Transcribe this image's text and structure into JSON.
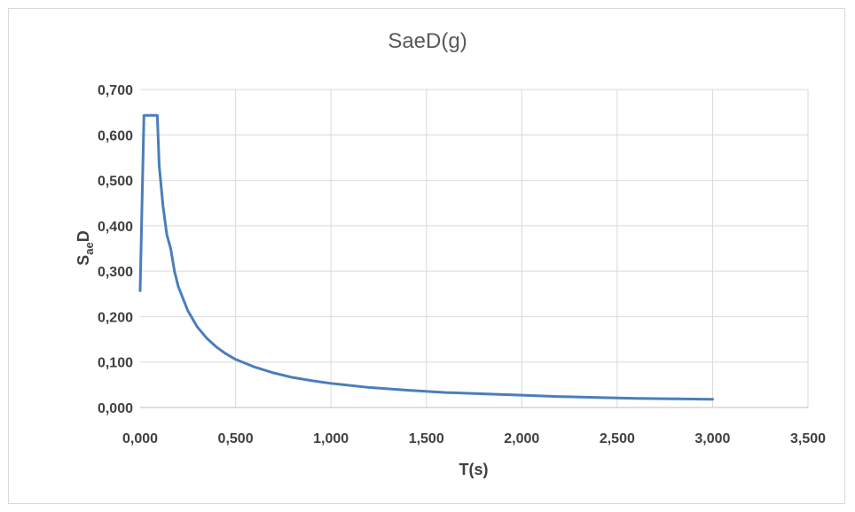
{
  "chart_data": {
    "type": "line",
    "title": "SaeD(g)",
    "xlabel": "T(s)",
    "ylabel_main": "S",
    "ylabel_sub": "ae",
    "ylabel_tail": "D",
    "xlim": [
      0,
      3.5
    ],
    "ylim": [
      0,
      0.7
    ],
    "x_ticks": [
      "0,000",
      "0,500",
      "1,000",
      "1,500",
      "2,000",
      "2,500",
      "3,000",
      "3,500"
    ],
    "y_ticks": [
      "0,000",
      "0,100",
      "0,200",
      "0,300",
      "0,400",
      "0,500",
      "0,600",
      "0,700"
    ],
    "grid": true,
    "legend": "none",
    "series": [
      {
        "color": "#4a7ebb",
        "x": [
          0.0,
          0.02,
          0.04,
          0.06,
          0.08,
          0.09,
          0.1,
          0.12,
          0.14,
          0.16,
          0.18,
          0.2,
          0.25,
          0.3,
          0.35,
          0.4,
          0.45,
          0.5,
          0.6,
          0.7,
          0.8,
          0.9,
          1.0,
          1.2,
          1.4,
          1.6,
          1.8,
          2.0,
          2.2,
          2.4,
          2.6,
          2.8,
          3.0
        ],
        "y": [
          0.257,
          0.643,
          0.643,
          0.643,
          0.643,
          0.643,
          0.532,
          0.443,
          0.38,
          0.35,
          0.3,
          0.266,
          0.213,
          0.177,
          0.152,
          0.133,
          0.118,
          0.106,
          0.089,
          0.076,
          0.066,
          0.059,
          0.053,
          0.044,
          0.038,
          0.033,
          0.03,
          0.027,
          0.024,
          0.022,
          0.02,
          0.019,
          0.018
        ]
      }
    ]
  }
}
